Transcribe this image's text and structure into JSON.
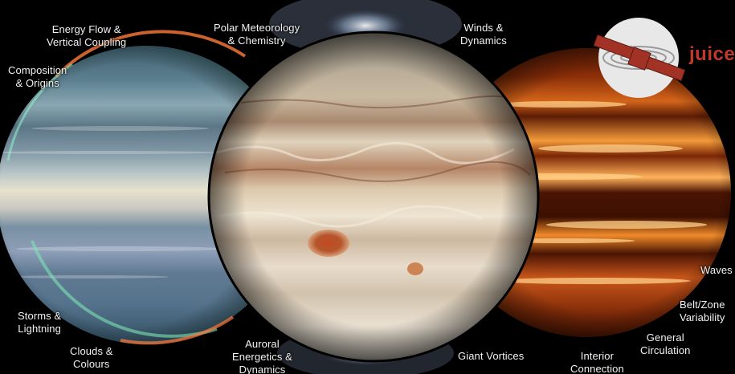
{
  "labels": {
    "energy_flow": [
      "Energy Flow &",
      "Vertical Coupling"
    ],
    "polar_meteorology": [
      "Polar Meteorology",
      "& Chemistry"
    ],
    "winds_dynamics": [
      "Winds &",
      "Dynamics"
    ],
    "composition_origins": [
      "Composition",
      "& Origins"
    ],
    "waves": [
      "Waves"
    ],
    "belt_zone": [
      "Belt/Zone",
      "Variability"
    ],
    "general_circulation": [
      "General",
      "Circulation"
    ],
    "storms_lightning": [
      "Storms &",
      "Lightning"
    ],
    "clouds_colours": [
      "Clouds &",
      "Colours"
    ],
    "auroral": [
      "Auroral",
      "Energetics &",
      "Dynamics"
    ],
    "giant_vortices": [
      "Giant Vortices"
    ],
    "interior_connection": [
      "Interior",
      "Connection"
    ]
  },
  "logo": {
    "wordmark": "juice",
    "color": "#c0392b"
  },
  "colors": {
    "infrared_planet": "#6c8aa0",
    "visible_planet": "#d9c8ad",
    "thermal_planet": "#e0600a",
    "background": "#000000"
  }
}
